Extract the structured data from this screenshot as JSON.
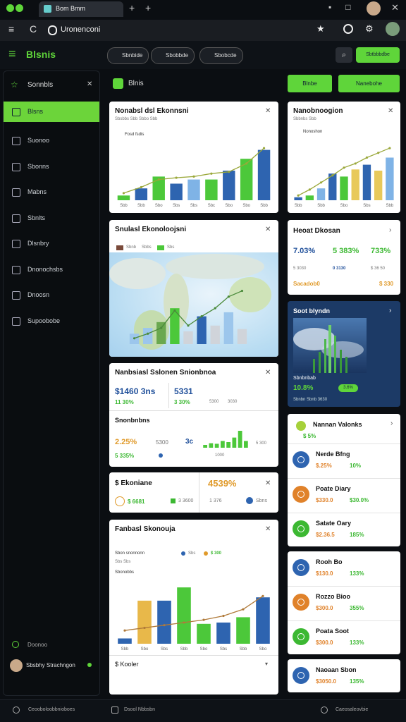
{
  "browser": {
    "tab": "Bom Bmm",
    "address": "Uronenconi"
  },
  "header": {
    "brand": "Blsnis",
    "tabs": [
      "Sbnbide",
      "Sbobbde",
      "Sbobcde"
    ],
    "action": "Sbtbbbdbe"
  },
  "sidebar": {
    "title": "Sonnbls",
    "items": [
      "Blsns",
      "Suonoo",
      "Sbonns",
      "Mabns",
      "Sbnlts",
      "Dlsnbry",
      "Dnonochsbs",
      "Dnoosn",
      "Supoobobe"
    ],
    "footer": "Doonoo",
    "user": "Sbsbhy Strachngon"
  },
  "main": {
    "title": "Blnis",
    "buttons": [
      "Blnbe",
      "Nanebohe"
    ]
  },
  "cards": {
    "economy": {
      "title": "Nonabsl dsl Ekonnsni",
      "subtitle": "Sbsbbs Sbb Sbbo Sbb",
      "legend": "Fosd fsdis",
      "chart": {
        "type": "bar",
        "categories": [
          "Sbb",
          "Sbb",
          "Sbo",
          "Sbs",
          "Sbs",
          "Sbc",
          "Sbo",
          "Sbo",
          "Sbb"
        ],
        "values": [
          8,
          20,
          40,
          28,
          35,
          35,
          50,
          70,
          85
        ],
        "colors": [
          "#4cc83a",
          "#2e64b0",
          "#4cc83a",
          "#2e64b0",
          "#7fb3e6",
          "#4cc83a",
          "#2e64b0",
          "#4cc83a",
          "#2e64b0"
        ],
        "line": {
          "color": "#9aa83a",
          "values": [
            12,
            22,
            35,
            38,
            40,
            45,
            48,
            62,
            88
          ]
        },
        "ylim": [
          0,
          100
        ]
      }
    },
    "tech": {
      "title": "Nanobnoogion",
      "subtitle": "Sbbnbs Sbb",
      "legend": "Nonoshon",
      "chart": {
        "type": "bar",
        "categories": [
          "Sbb",
          null,
          "Sbb",
          null,
          "Sbo",
          null,
          "Sbs",
          null,
          "Sbb"
        ],
        "values": [
          5,
          8,
          20,
          45,
          40,
          52,
          60,
          50,
          72
        ],
        "colors": [
          "#2e64b0",
          "#4cc83a",
          "#7fb3e6",
          "#2e64b0",
          "#4cc83a",
          "#e8c95a",
          "#2e64b0",
          "#e8c95a",
          "#7fb3e6"
        ],
        "line": {
          "color": "#9aa83a",
          "values": [
            8,
            18,
            30,
            42,
            55,
            62,
            72,
            80,
            88
          ]
        },
        "ylim": [
          0,
          100
        ]
      }
    },
    "map": {
      "title": "Snulasl Ekonoloojsni",
      "legend": [
        "Sbnb",
        "Sbbs",
        "Sbs"
      ],
      "chart": {
        "type": "bar",
        "values": [
          18,
          28,
          38,
          62,
          22,
          48,
          32,
          55,
          26
        ],
        "colors": [
          "#9cc6ec",
          "#9cc6ec",
          "#6aa84f",
          "#4cc83a",
          "#d0d4da",
          "#2e64b0",
          "#d0d4da",
          "#9cc6ec",
          "#d0d4da"
        ],
        "line": {
          "color": "#4a8a3a",
          "values": [
            10,
            18,
            28,
            58,
            32,
            48,
            62,
            82,
            92
          ]
        },
        "ylim": [
          0,
          100
        ]
      }
    },
    "finance": {
      "title": "Nanbsiasl Sslonen Snionbnoa",
      "big_a": "$1460 3ns",
      "big_b": "5331",
      "sub": [
        "11 30%",
        "3 30%",
        "5300",
        "3030"
      ],
      "section": "Snonbnbns",
      "pct": "2.25%",
      "mid": "5300",
      "tag": "3c",
      "tail": "5 300",
      "foot_a": "5 335%",
      "foot_b": "1000",
      "spark": {
        "type": "bar",
        "color": "#4cc83a",
        "values": [
          5,
          8,
          7,
          12,
          10,
          18,
          30,
          12
        ],
        "ylim": [
          0,
          35
        ]
      }
    },
    "small": {
      "title": "$ Ekoniane",
      "pct": "4539%",
      "items": [
        "$ 6681",
        "3 3600",
        "1 376",
        "Sbns"
      ]
    },
    "fanbasl": {
      "title": "Fanbasl Skonouja",
      "legend": [
        "Sbon snonnonn",
        "Sbs",
        "$ 300"
      ],
      "sub": "Sbs Sbs",
      "label": "Sbonobbs",
      "chart": {
        "type": "bar",
        "categories": [
          "Sbb",
          "Sbo",
          "Sbs",
          "Sbb",
          "Sbo",
          "Sbs",
          "Sbb",
          "Sbo"
        ],
        "values": [
          8,
          65,
          65,
          85,
          30,
          32,
          40,
          70
        ],
        "colors": [
          "#2e64b0",
          "#e8b84a",
          "#2e64b0",
          "#4cc83a",
          "#4cc83a",
          "#2e64b0",
          "#4cc83a",
          "#2e64b0"
        ],
        "line": {
          "color": "#b07a3a",
          "values": [
            20,
            24,
            28,
            32,
            36,
            42,
            52,
            72
          ]
        },
        "ylim": [
          0,
          100
        ]
      },
      "footer": "$ Kooler"
    },
    "heat": {
      "title": "Heoat Dkosan",
      "stats": [
        "7.03%",
        "5 383%",
        "733%"
      ],
      "subs": [
        "5 3030",
        "0 3130",
        "$ 36 50"
      ],
      "foot": [
        "Sacadob0",
        "$ 330"
      ]
    },
    "dark": {
      "title": "Soot blyndn",
      "label": "Sbnbnbab",
      "pct": "10.8%",
      "pill": "3.6%",
      "foot": "Sbnbn Sbnb 3630"
    },
    "list_a": {
      "title": "Nannan Valonks",
      "sub": "$ 5%",
      "items": [
        {
          "name": "Nerde Bfng",
          "a": "$.25%",
          "b": "10%"
        },
        {
          "name": "Poate Diary",
          "a": "$330.0",
          "b": "$30.0%"
        },
        {
          "name": "Satate Oary",
          "a": "$2.36.5",
          "b": "185%"
        }
      ]
    },
    "list_b": {
      "items": [
        {
          "name": "Rooh Bo",
          "a": "$130.0",
          "b": "133%"
        },
        {
          "name": "Rozzo Bioo",
          "a": "$300.0",
          "b": "355%"
        },
        {
          "name": "Poata Soot",
          "a": "$300.0",
          "b": "133%"
        }
      ]
    },
    "list_c": {
      "items": [
        {
          "name": "Naoaan Sbon",
          "a": "$3050.0",
          "b": "135%"
        }
      ]
    }
  },
  "footer": [
    "Ceooboloobbnioboes",
    "Dsool Nbbsbn",
    "Caeosaleovbie"
  ]
}
